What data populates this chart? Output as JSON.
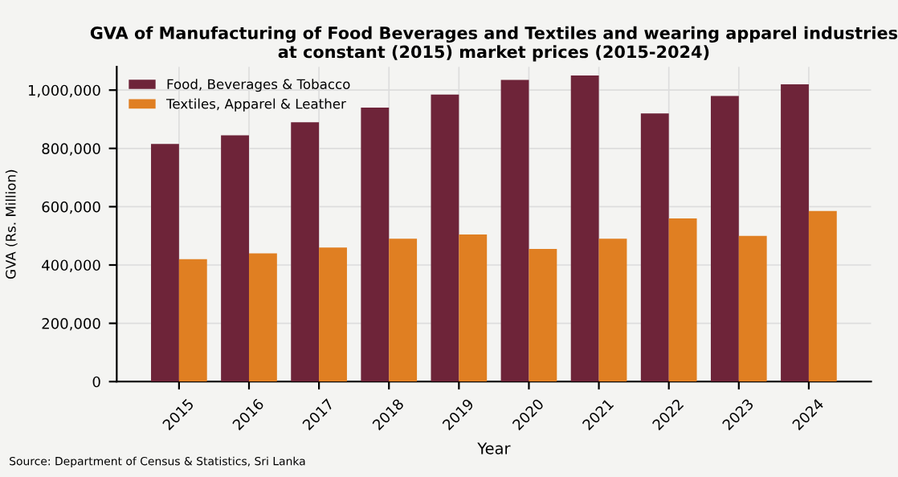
{
  "chart_data": {
    "type": "bar",
    "title": "GVA of Manufacturing of Food Beverages and Textiles and wearing apparel industries\nat constant (2015) market prices (2015-2024)",
    "xlabel": "Year",
    "ylabel": "GVA (Rs. Million)",
    "categories": [
      "2015",
      "2016",
      "2017",
      "2018",
      "2019",
      "2020",
      "2021",
      "2022",
      "2023",
      "2024"
    ],
    "series": [
      {
        "name": "Food, Beverages & Tobacco",
        "color": "#6e2439",
        "values": [
          815000,
          845000,
          890000,
          940000,
          985000,
          1035000,
          1050000,
          920000,
          980000,
          1020000
        ]
      },
      {
        "name": "Textiles, Apparel & Leather",
        "color": "#e07f22",
        "values": [
          420000,
          440000,
          460000,
          490000,
          505000,
          455000,
          490000,
          560000,
          500000,
          585000
        ]
      }
    ],
    "ylim": [
      0,
      1080000
    ],
    "yticks": [
      {
        "value": 0,
        "label": "0"
      },
      {
        "value": 200000,
        "label": "200,000"
      },
      {
        "value": 400000,
        "label": "400,000"
      },
      {
        "value": 600000,
        "label": "600,000"
      },
      {
        "value": 800000,
        "label": "800,000"
      },
      {
        "value": 1000000,
        "label": "1,000,000"
      }
    ],
    "grid": true,
    "legend": "top left",
    "annotations": [
      "Source: Department of Census & Statistics, Sri Lanka"
    ]
  }
}
